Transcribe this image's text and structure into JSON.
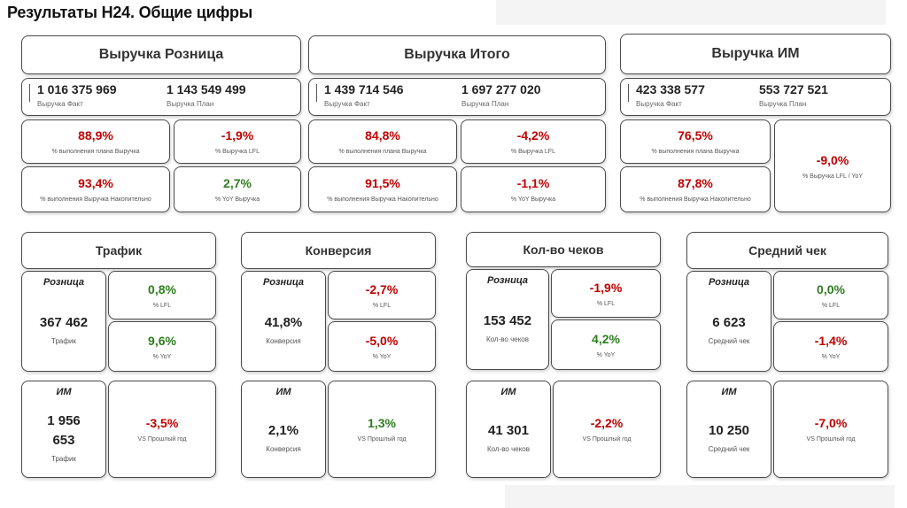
{
  "title": "Результаты H24. Общие цифры",
  "top": {
    "retail": {
      "header": "Выручка Розница",
      "fact_value": "1 016 375 969",
      "fact_label": "Выручка Факт",
      "plan_value": "1 143 549 499",
      "plan_label": "Выручка План",
      "k1_value": "88,9%",
      "k1_label": "% выполнения плана Выручка",
      "k2_value": "-1,9%",
      "k2_label": "% Выручка LFL",
      "k3_value": "93,4%",
      "k3_label": "% выполнения Выручка Накопительно",
      "k4_value": "2,7%",
      "k4_label": "% YoY Выручка"
    },
    "total": {
      "header": "Выручка Итого",
      "fact_value": "1 439 714 546",
      "fact_label": "Выручка Факт",
      "plan_value": "1 697 277 020",
      "plan_label": "Выручка План",
      "k1_value": "84,8%",
      "k1_label": "% выполнения плана Выручка",
      "k2_value": "-4,2%",
      "k2_label": "% Выручка LFL",
      "k3_value": "91,5%",
      "k3_label": "% выполнения Выручка Накопительно",
      "k4_value": "-1,1%",
      "k4_label": "% YoY Выручка"
    },
    "online": {
      "header": "Выручка ИМ",
      "fact_value": "423 338 577",
      "fact_label": "Выручка Факт",
      "plan_value": "553 727 521",
      "plan_label": "Выручка План",
      "k1_value": "76,5%",
      "k1_label": "% выполнения плана Выручка",
      "k3_value": "87,8%",
      "k3_label": "% выполнения Выручка Накопительно",
      "k5_value": "-9,0%",
      "k5_label": "% Выручка LFL / YoY"
    }
  },
  "colors": {
    "negative": "#c00000",
    "positive": "#2e7d1f"
  },
  "metrics": {
    "traffic": {
      "header": "Трафик",
      "retail_caption": "Розница",
      "retail_value": "367 462",
      "retail_sub": "Трафик",
      "lfl_value": "0,8%",
      "lfl_label": "% LFL",
      "yoy_value": "9,6%",
      "yoy_label": "% YoY",
      "online_caption": "ИМ",
      "online_value_line1": "1 956",
      "online_value_line2": "653",
      "online_sub": "Трафик",
      "vs_value": "-3,5%",
      "vs_label": "VS Прошлый год"
    },
    "conversion": {
      "header": "Конверсия",
      "retail_caption": "Розница",
      "retail_value": "41,8%",
      "retail_sub": "Конверсия",
      "lfl_value": "-2,7%",
      "lfl_label": "% LFL",
      "yoy_value": "-5,0%",
      "yoy_label": "% YoY",
      "online_caption": "ИМ",
      "online_value": "2,1%",
      "online_sub": "Конверсия",
      "vs_value": "1,3%",
      "vs_label": "VS Прошлый год"
    },
    "checks": {
      "header": "Кол-во чеков",
      "retail_caption": "Розница",
      "retail_value": "153 452",
      "retail_sub": "Кол-во чеков",
      "lfl_value": "-1,9%",
      "lfl_label": "% LFL",
      "yoy_value": "4,2%",
      "yoy_label": "% YoY",
      "online_caption": "ИМ",
      "online_value": "41 301",
      "online_sub": "Кол-во чеков",
      "vs_value": "-2,2%",
      "vs_label": "VS Прошлый год"
    },
    "avg_check": {
      "header": "Средний чек",
      "retail_caption": "Розница",
      "retail_value": "6 623",
      "retail_sub": "Средний чек",
      "lfl_value": "0,0%",
      "lfl_label": "% LFL",
      "yoy_value": "-1,4%",
      "yoy_label": "% YoY",
      "online_caption": "ИМ",
      "online_value": "10 250",
      "online_sub": "Средний чек",
      "vs_value": "-7,0%",
      "vs_label": "VS Прошлый год"
    }
  }
}
